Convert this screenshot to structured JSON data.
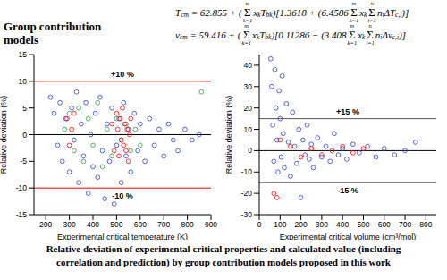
{
  "side_label": [
    "Group contribution",
    "models"
  ],
  "formulas": [
    [
      {
        "t": "T"
      },
      {
        "sub": "cm"
      },
      {
        "t": " = 62.855 + ("
      },
      {
        "sum": "Σ",
        "up": "m",
        "low": "k=1"
      },
      {
        "t": "x"
      },
      {
        "sub": "k"
      },
      {
        "t": "T"
      },
      {
        "sub": "bk"
      },
      {
        "t": ")[1.3618 + (6.4586"
      },
      {
        "sum": "Σ",
        "up": "m",
        "low": "k=1"
      },
      {
        "t": "x"
      },
      {
        "sub": "k"
      },
      {
        "sum": "Σ",
        "up": "n",
        "low": "i=1"
      },
      {
        "t": "n"
      },
      {
        "sub": "i"
      },
      {
        "t": "ΔT"
      },
      {
        "sub": "c,i"
      },
      {
        "t": ")]"
      }
    ],
    [
      {
        "t": "v"
      },
      {
        "sub": "cm"
      },
      {
        "t": " = 59.416 + ("
      },
      {
        "sum": "Σ",
        "up": "m",
        "low": "k=1"
      },
      {
        "t": "x"
      },
      {
        "sub": "k"
      },
      {
        "t": "T"
      },
      {
        "sub": "bk"
      },
      {
        "t": ")[0.11286 − (3.408"
      },
      {
        "sum": "Σ",
        "up": "m",
        "low": "k=1"
      },
      {
        "t": "x"
      },
      {
        "sub": "k"
      },
      {
        "sum": "Σ",
        "up": "n",
        "low": "i=1"
      },
      {
        "t": "n"
      },
      {
        "sub": "i"
      },
      {
        "t": "Δv"
      },
      {
        "sub": "c,i"
      },
      {
        "t": ")]"
      }
    ]
  ],
  "caption": [
    "Relative deviation of experimental critical properties and calculated value (including",
    "correlation and prediction) by group contribution models proposed in this work"
  ],
  "chart_data": [
    {
      "type": "scatter",
      "x_label": "Experimental critical temperature (K)",
      "y_label": "Relative deviation (%)",
      "xlim": [
        150,
        900
      ],
      "xticks": [
        200,
        300,
        400,
        500,
        600,
        700,
        800,
        900
      ],
      "ylim": [
        -15,
        15
      ],
      "yticks": [
        -15,
        -10,
        -5,
        0,
        5,
        10,
        15
      ],
      "hlines": [
        {
          "y": 10,
          "color": "#ff0000",
          "label": "+10 %"
        },
        {
          "y": -10,
          "color": "#ff0000",
          "label": "-10 %"
        },
        {
          "y": 0,
          "color": "#000000"
        }
      ],
      "series": [
        {
          "color": "#2b3fd6",
          "marker": "circle-open",
          "x": [
            220,
            235,
            250,
            260,
            270,
            285,
            300,
            310,
            320,
            330,
            340,
            350,
            360,
            370,
            380,
            390,
            400,
            410,
            420,
            430,
            440,
            450,
            460,
            470,
            480,
            490,
            500,
            510,
            520,
            530,
            540,
            550,
            560,
            575,
            590,
            600,
            620,
            640,
            660,
            680,
            700,
            720,
            740,
            760,
            790,
            820,
            850
          ],
          "y": [
            7,
            4,
            -2,
            6,
            -5,
            3,
            -7,
            5,
            -1,
            8,
            -9,
            2,
            -4,
            6,
            -11,
            0,
            -6,
            4,
            -8,
            7,
            -3,
            -12,
            2,
            -5,
            5,
            -13,
            -2,
            3,
            -9,
            6,
            -4,
            1,
            -7,
            4,
            -3,
            2,
            -5,
            3,
            -2,
            1,
            -4,
            2,
            -1,
            -3,
            1,
            -1,
            0
          ]
        },
        {
          "color": "#2e9e3e",
          "marker": "circle-open",
          "x": [
            280,
            300,
            320,
            340,
            360,
            380,
            400,
            420,
            440,
            460,
            480,
            500,
            520,
            540,
            560,
            580,
            600,
            860
          ],
          "y": [
            1,
            4,
            -3,
            5,
            -5,
            3,
            -2,
            6,
            -6,
            1,
            -4,
            3,
            -1,
            2,
            -3,
            1,
            -2,
            8
          ]
        },
        {
          "color": "#ff0000",
          "marker": "circle-open",
          "x": [
            290,
            300,
            310,
            320,
            480,
            490,
            500,
            505,
            510,
            515,
            520,
            525,
            530,
            535,
            540,
            545,
            550,
            555,
            560
          ],
          "y": [
            3,
            -2,
            1,
            4,
            2,
            -3,
            4,
            1,
            -4,
            3,
            -1,
            5,
            -2,
            2,
            -3,
            1,
            -5,
            0,
            3
          ]
        }
      ]
    },
    {
      "type": "scatter",
      "x_label": "Experimental critical volume (cm³/mol)",
      "y_label": "Relative deviation (%)",
      "xlim": [
        0,
        850
      ],
      "xticks": [
        0,
        100,
        200,
        300,
        400,
        500,
        600,
        700,
        800
      ],
      "ylim": [
        -30,
        45
      ],
      "yticks": [
        -30,
        -20,
        -10,
        0,
        10,
        20,
        30,
        40
      ],
      "hlines": [
        {
          "y": 15,
          "color": "#555555",
          "label": "+15 %"
        },
        {
          "y": -15,
          "color": "#555555",
          "label": "-15 %"
        },
        {
          "y": 0,
          "color": "#000000"
        }
      ],
      "series": [
        {
          "color": "#2b3fd6",
          "marker": "circle-open",
          "x": [
            55,
            60,
            65,
            70,
            75,
            80,
            85,
            90,
            95,
            100,
            105,
            110,
            115,
            120,
            130,
            140,
            150,
            160,
            170,
            180,
            190,
            200,
            210,
            220,
            230,
            240,
            250,
            260,
            280,
            300,
            320,
            340,
            360,
            380,
            400,
            420,
            450,
            480,
            520,
            560,
            600,
            650,
            700,
            750
          ],
          "y": [
            43,
            30,
            12,
            -5,
            38,
            20,
            5,
            -10,
            28,
            15,
            -3,
            35,
            8,
            -8,
            22,
            4,
            -12,
            18,
            2,
            -6,
            10,
            -22,
            5,
            -2,
            12,
            -4,
            3,
            -8,
            6,
            -3,
            2,
            -5,
            8,
            -2,
            1,
            -4,
            3,
            -1,
            2,
            -3,
            1,
            -2,
            0,
            4
          ]
        },
        {
          "color": "#ff0000",
          "marker": "circle-open",
          "x": [
            70,
            85,
            100,
            150,
            200,
            250,
            300,
            350,
            400,
            450,
            500
          ],
          "y": [
            -20,
            -22,
            5,
            2,
            -3,
            1,
            -2,
            0,
            2,
            -1,
            1
          ]
        }
      ]
    }
  ]
}
